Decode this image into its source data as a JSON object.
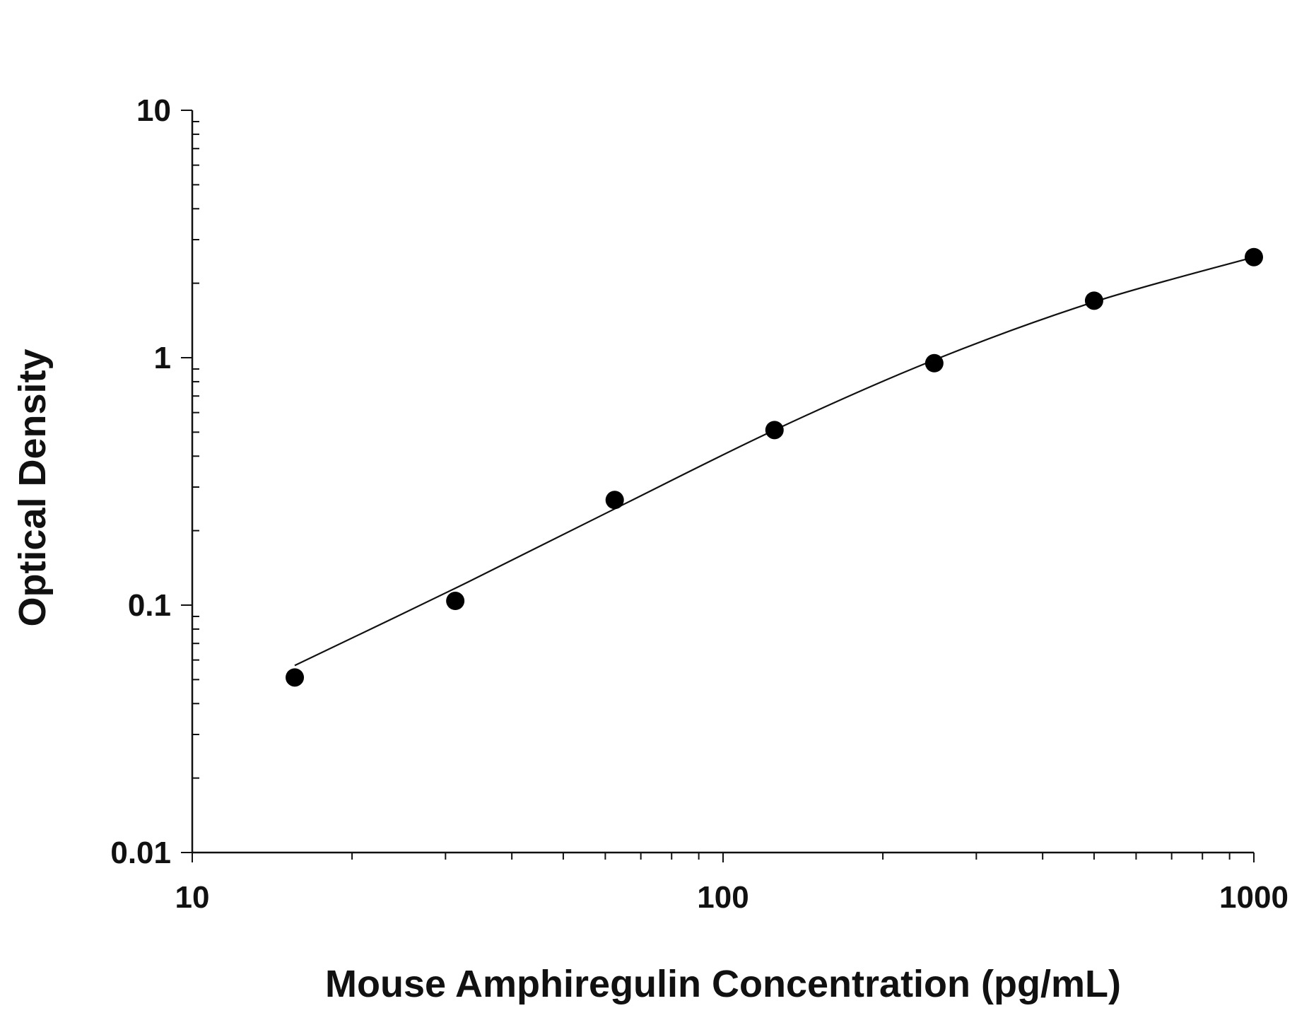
{
  "chart_data": {
    "type": "scatter",
    "title": "",
    "xlabel": "Mouse Amphiregulin Concentration (pg/mL)",
    "ylabel": "Optical Density",
    "x_scale": "log",
    "y_scale": "log",
    "xlim": [
      10,
      1000
    ],
    "ylim": [
      0.01,
      10
    ],
    "x_ticks": [
      {
        "value": 10,
        "label": "10"
      },
      {
        "value": 100,
        "label": "100"
      },
      {
        "value": 1000,
        "label": "1000"
      }
    ],
    "y_ticks": [
      {
        "value": 0.01,
        "label": "0.01"
      },
      {
        "value": 0.1,
        "label": "0.1"
      },
      {
        "value": 1,
        "label": "1"
      },
      {
        "value": 10,
        "label": "10"
      }
    ],
    "grid": false,
    "legend": "none",
    "series": [
      {
        "type": "scatter",
        "x": [
          15.6,
          31.3,
          62.5,
          125,
          250,
          500,
          1000
        ],
        "y": [
          0.051,
          0.104,
          0.266,
          0.51,
          0.95,
          1.7,
          2.55
        ]
      },
      {
        "type": "line",
        "x": [
          15.6,
          31.3,
          62.5,
          125,
          250,
          500,
          1000
        ],
        "y": [
          0.057,
          0.117,
          0.245,
          0.51,
          0.98,
          1.68,
          2.55
        ]
      }
    ],
    "colors": {
      "axis": "#111111",
      "points": "#000000",
      "curve": "#111111"
    }
  }
}
